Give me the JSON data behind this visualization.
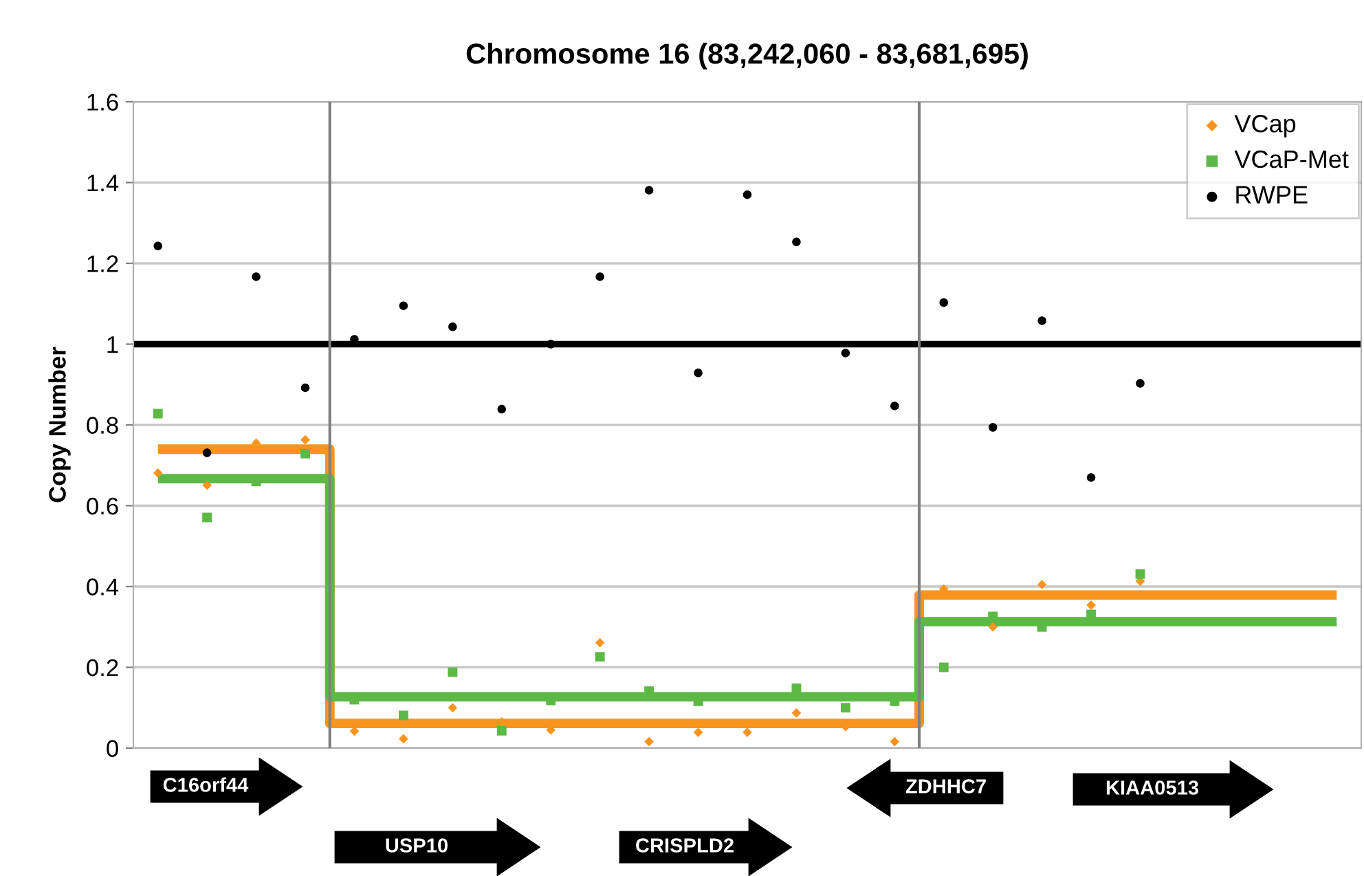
{
  "chart_data": {
    "type": "scatter",
    "title": "Chromosome 16 (83,242,060 - 83,681,695)",
    "ylabel": "Copy Number",
    "categories": [
      null,
      null,
      null,
      null,
      null,
      null,
      null,
      null,
      null,
      null,
      null,
      null,
      null,
      null,
      null,
      null,
      null,
      null,
      null,
      null,
      null,
      null,
      null,
      null,
      null
    ],
    "ylim": [
      0,
      1.6
    ],
    "yticks": [
      0,
      0.2,
      0.4,
      0.6,
      0.8,
      1,
      1.2,
      1.4,
      1.6
    ],
    "grid": "y",
    "legend": "top right",
    "series": [
      {
        "name": "VCap",
        "color": "#f7941d",
        "marker": "diamond",
        "values": [
          0.681,
          0.651,
          0.755,
          0.763,
          0.042,
          0.023,
          0.1,
          0.065,
          0.045,
          0.261,
          0.016,
          0.039,
          0.039,
          0.087,
          0.053,
          0.016,
          0.394,
          0.3,
          0.405,
          0.354,
          0.413,
          null,
          null,
          null,
          null
        ]
      },
      {
        "name": "VCaP-Met",
        "color": "#5cb946",
        "marker": "square",
        "values": [
          0.828,
          0.571,
          0.66,
          0.729,
          0.12,
          0.081,
          0.188,
          0.043,
          0.118,
          0.226,
          0.141,
          0.116,
          null,
          0.148,
          0.1,
          0.116,
          0.2,
          0.326,
          0.3,
          0.331,
          0.431,
          null,
          null,
          null,
          null
        ]
      },
      {
        "name": "RWPE",
        "color": "#000000",
        "marker": "circle",
        "values": [
          1.243,
          0.731,
          1.167,
          0.892,
          1.012,
          1.095,
          1.043,
          0.839,
          1.0,
          1.167,
          1.381,
          0.929,
          1.37,
          1.253,
          0.978,
          0.847,
          1.103,
          0.794,
          1.058,
          0.67,
          0.903,
          null,
          null,
          null,
          null
        ]
      },
      {
        "type": "step",
        "color": "#f7941d",
        "values": [
          0.74,
          0.74,
          0.74,
          0.74,
          0.061,
          0.061,
          0.061,
          0.061,
          0.061,
          0.061,
          0.061,
          0.061,
          0.061,
          0.061,
          0.061,
          0.061,
          0.379,
          0.379,
          0.379,
          0.379,
          0.379,
          0.379,
          0.379,
          0.379,
          0.379
        ]
      },
      {
        "type": "step",
        "color": "#5cb946",
        "values": [
          0.667,
          0.667,
          0.667,
          0.667,
          0.127,
          0.127,
          0.127,
          0.127,
          0.127,
          0.127,
          0.127,
          0.127,
          0.127,
          0.127,
          0.127,
          0.127,
          0.313,
          0.313,
          0.313,
          0.313,
          0.313,
          0.313,
          0.313,
          0.313,
          0.313
        ]
      }
    ],
    "ref_lines": [
      {
        "axis": "y",
        "value": 1,
        "color": "#000000"
      }
    ],
    "annotations": [
      "C16orf44",
      "USP10",
      "CRISPLD2",
      "ZDHHC7",
      "KIAA0513"
    ]
  }
}
